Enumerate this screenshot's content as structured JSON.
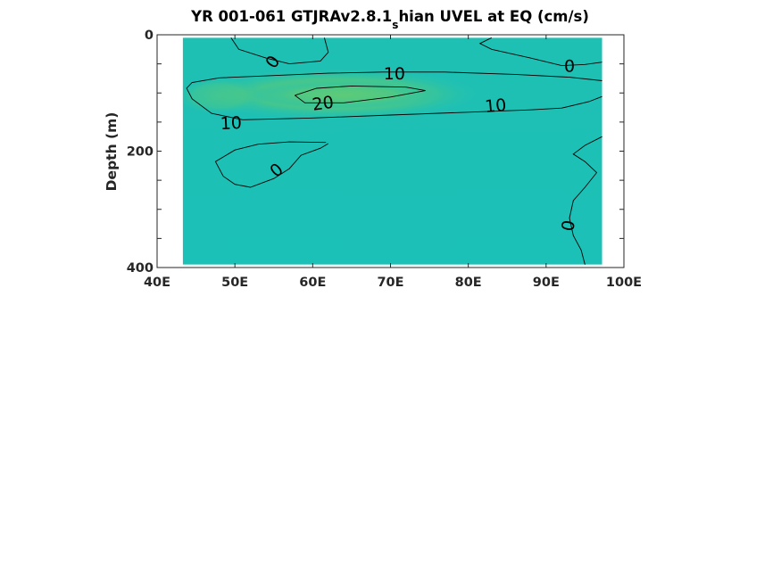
{
  "chart_data": {
    "type": "heatmap",
    "title": "YR 001-061 GTJRAv2.8.1",
    "title_subscript": "s",
    "title_suffix": "hian UVEL at EQ (cm/s)",
    "xlabel": "",
    "ylabel": "Depth (m)",
    "xlim": [
      40,
      100
    ],
    "ylim": [
      400,
      0
    ],
    "y_reversed": true,
    "x_ticks": [
      40,
      50,
      60,
      70,
      80,
      90,
      100
    ],
    "x_tick_labels": [
      "40E",
      "50E",
      "60E",
      "70E",
      "80E",
      "90E",
      "100E"
    ],
    "y_ticks": [
      0,
      200,
      400
    ],
    "y_tick_labels": [
      "0",
      "200",
      "400"
    ],
    "data_extent": {
      "lon": [
        43.3,
        97.2
      ],
      "depth": [
        5,
        395
      ]
    },
    "colors": {
      "background_field": "#18bfbb",
      "jet_core": "#5ccb78",
      "jet_edge": "#3fc78f"
    },
    "contour_levels": [
      0,
      10,
      20
    ],
    "contours": [
      {
        "level": 0,
        "points": [
          [
            49.5,
            5
          ],
          [
            50.5,
            25
          ],
          [
            54,
            40
          ],
          [
            57,
            50
          ],
          [
            61,
            45
          ],
          [
            62,
            30
          ],
          [
            61.5,
            5
          ]
        ]
      },
      {
        "level": 0,
        "points": [
          [
            83,
            5
          ],
          [
            81.5,
            15
          ],
          [
            83,
            25
          ],
          [
            88,
            40
          ],
          [
            92,
            53
          ],
          [
            95,
            51
          ],
          [
            97.2,
            47
          ]
        ]
      },
      {
        "level": 0,
        "points": [
          [
            61.7,
            185
          ],
          [
            57,
            184
          ],
          [
            53,
            188
          ],
          [
            50,
            198
          ],
          [
            47.5,
            218
          ],
          [
            48.5,
            243
          ],
          [
            50,
            257
          ],
          [
            52,
            262
          ],
          [
            55,
            247
          ],
          [
            57,
            230
          ],
          [
            58.5,
            207
          ],
          [
            61,
            195
          ],
          [
            62,
            187
          ]
        ]
      },
      {
        "level": 0,
        "points": [
          [
            97.2,
            175
          ],
          [
            95,
            190
          ],
          [
            93.5,
            205
          ],
          [
            95,
            218
          ],
          [
            96.5,
            237
          ],
          [
            95,
            262
          ],
          [
            93.5,
            285
          ],
          [
            93,
            315
          ],
          [
            93.5,
            345
          ],
          [
            94.5,
            370
          ],
          [
            95,
            395
          ]
        ]
      },
      {
        "level": 10,
        "points": [
          [
            97.2,
            79
          ],
          [
            93,
            73
          ],
          [
            86,
            68
          ],
          [
            77,
            64
          ],
          [
            69,
            64
          ],
          [
            62,
            66
          ],
          [
            55,
            70
          ],
          [
            48,
            74
          ],
          [
            44.5,
            82
          ],
          [
            43.8,
            92
          ],
          [
            44.5,
            110
          ],
          [
            47,
            135
          ],
          [
            51,
            146
          ],
          [
            60,
            143
          ],
          [
            70,
            138
          ],
          [
            80,
            133
          ],
          [
            88,
            129
          ],
          [
            92,
            126
          ],
          [
            95.5,
            115
          ],
          [
            97.2,
            106
          ]
        ]
      },
      {
        "level": 20,
        "points": [
          [
            57.7,
            104
          ],
          [
            60.5,
            92
          ],
          [
            65,
            88
          ],
          [
            72,
            90
          ],
          [
            74.5,
            96
          ],
          [
            70,
            107
          ],
          [
            64,
            117
          ],
          [
            59,
            117
          ],
          [
            57.7,
            104
          ]
        ]
      }
    ],
    "contour_labels": [
      {
        "text": "0",
        "lon": 54.8,
        "depth": 46,
        "angle": -55
      },
      {
        "text": "0",
        "lon": 93,
        "depth": 53,
        "angle": 0
      },
      {
        "text": "0",
        "lon": 55.3,
        "depth": 232,
        "angle": -40
      },
      {
        "text": "0",
        "lon": 92.8,
        "depth": 328,
        "angle": -80
      },
      {
        "text": "10",
        "lon": 70.5,
        "depth": 66,
        "angle": 0
      },
      {
        "text": "10",
        "lon": 49.5,
        "depth": 151,
        "angle": -3
      },
      {
        "text": "10",
        "lon": 83.5,
        "depth": 121,
        "angle": -5
      },
      {
        "text": "20",
        "lon": 61.3,
        "depth": 117,
        "angle": -8
      }
    ]
  }
}
